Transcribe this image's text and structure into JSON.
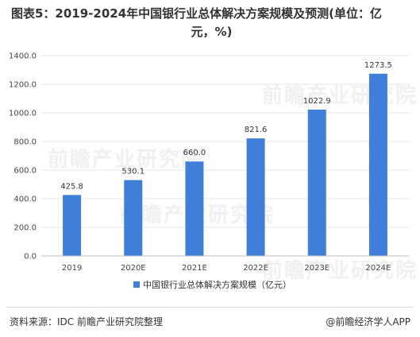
{
  "title_line1": "图表5：2019-2024年中国银行业总体解决方案规模及预测(单位：亿",
  "title_line2": "元，%)",
  "watermark_text": "前瞻产业研究院",
  "source": "资料来源：IDC 前瞻产业研究院整理",
  "credit": "@前瞻经济学人APP",
  "colors": {
    "bar": "#3f7fd9",
    "grid": "#e6e6e6",
    "axis": "#bfbfbf"
  },
  "chart_data": {
    "type": "bar",
    "categories": [
      "2019",
      "2020E",
      "2021E",
      "2022E",
      "2023E",
      "2024E"
    ],
    "series": [
      {
        "name": "中国银行业总体解决方案规模（亿元）",
        "values": [
          425.8,
          530.1,
          660.0,
          821.6,
          1022.9,
          1273.5
        ]
      }
    ],
    "value_labels": [
      "425.8",
      "530.1",
      "660.0",
      "821.6",
      "1022.9",
      "1273.5"
    ],
    "yticks": [
      "0.0",
      "200.0",
      "400.0",
      "600.0",
      "800.0",
      "1000.0",
      "1200.0",
      "1400.0"
    ],
    "ylim": [
      0,
      1400
    ],
    "legend_position": "bottom-center",
    "grid": true
  }
}
